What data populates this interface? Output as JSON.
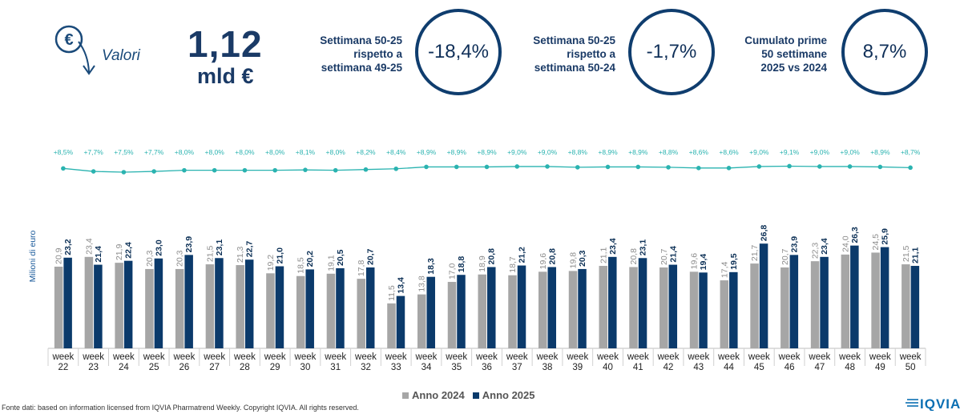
{
  "header": {
    "icon": "euro-down-arrow-icon",
    "label": "Valori",
    "value": "1,12",
    "unit": "mld €"
  },
  "kpis": [
    {
      "label_lines": [
        "Settimana 50-25",
        "rispetto a",
        "settimana 49-25"
      ],
      "value": "-18,4%"
    },
    {
      "label_lines": [
        "Settimana 50-25",
        "rispetto a",
        "settimana 50-24"
      ],
      "value": "-1,7%"
    },
    {
      "label_lines": [
        "Cumulato prime",
        "50 settimane",
        "2025 vs 2024"
      ],
      "value": "8,7%"
    }
  ],
  "colors": {
    "series_2024": "#a6a6a6",
    "series_2025": "#0b3a6b",
    "growth_line": "#2ab3b0",
    "kpi_ring": "#0f3d6e",
    "ylabel": "#1a5a9a"
  },
  "chart_data": {
    "type": "bar",
    "ylabel": "Milioni di euro",
    "ylim": [
      0,
      30
    ],
    "grid": false,
    "legend_position": "bottom",
    "categories": [
      "week\n22",
      "week\n23",
      "week\n24",
      "week\n25",
      "week\n26",
      "week\n27",
      "week\n28",
      "week\n29",
      "week\n30",
      "week\n31",
      "week\n32",
      "week\n33",
      "week\n34",
      "week\n35",
      "week\n36",
      "week\n37",
      "week\n38",
      "week\n39",
      "week\n40",
      "week\n41",
      "week\n42",
      "week\n43",
      "week\n44",
      "week\n45",
      "week\n46",
      "week\n47",
      "week\n48",
      "week\n49",
      "week\n50"
    ],
    "series": [
      {
        "name": "Anno 2024",
        "values": [
          20.9,
          23.4,
          21.9,
          20.3,
          20.3,
          21.5,
          21.3,
          19.2,
          18.5,
          19.1,
          17.8,
          11.5,
          13.8,
          17.0,
          18.9,
          18.7,
          19.6,
          19.8,
          21.1,
          20.8,
          20.7,
          19.6,
          17.4,
          21.7,
          20.7,
          22.3,
          24.0,
          24.5,
          21.5
        ],
        "labels": [
          "20,9",
          "23,4",
          "21,9",
          "20,3",
          "20,3",
          "21,5",
          "21,3",
          "19,2",
          "18,5",
          "19,1",
          "17,8",
          "11,5",
          "13,8",
          "17,0",
          "18,9",
          "18,7",
          "19,6",
          "19,8",
          "21,1",
          "20,8",
          "20,7",
          "19,6",
          "17,4",
          "21,7",
          "20,7",
          "22,3",
          "24,0",
          "24,5",
          "21,5"
        ]
      },
      {
        "name": "Anno 2025",
        "values": [
          23.2,
          21.4,
          22.4,
          23.0,
          23.9,
          23.1,
          22.7,
          21.0,
          20.2,
          20.5,
          20.7,
          13.4,
          18.3,
          18.8,
          20.8,
          21.2,
          20.8,
          20.3,
          23.4,
          23.1,
          21.4,
          19.4,
          19.5,
          26.8,
          23.9,
          23.4,
          26.3,
          25.9,
          21.1
        ],
        "labels": [
          "23,2",
          "21,4",
          "22,4",
          "23,0",
          "23,9",
          "23,1",
          "22,7",
          "21,0",
          "20,2",
          "20,5",
          "20,7",
          "13,4",
          "18,3",
          "18,8",
          "20,8",
          "21,2",
          "20,8",
          "20,3",
          "23,4",
          "23,1",
          "21,4",
          "19,4",
          "19,5",
          "26,8",
          "23,9",
          "23,4",
          "26,3",
          "25,9",
          "21,1"
        ]
      }
    ],
    "growth_line": {
      "values": [
        8.5,
        7.7,
        7.5,
        7.7,
        8.0,
        8.0,
        8.0,
        8.0,
        8.1,
        8.0,
        8.2,
        8.4,
        8.9,
        8.9,
        8.9,
        9.0,
        9.0,
        8.8,
        8.9,
        8.9,
        8.8,
        8.6,
        8.6,
        9.0,
        9.1,
        9.0,
        9.0,
        8.9,
        8.7
      ],
      "labels": [
        "+8,5%",
        "+7,7%",
        "+7,5%",
        "+7,7%",
        "+8,0%",
        "+8,0%",
        "+8,0%",
        "+8,0%",
        "+8,1%",
        "+8,0%",
        "+8,2%",
        "+8,4%",
        "+8,9%",
        "+8,9%",
        "+8,9%",
        "+9,0%",
        "+9,0%",
        "+8,8%",
        "+8,9%",
        "+8,9%",
        "+8,8%",
        "+8,6%",
        "+8,6%",
        "+9,0%",
        "+9,1%",
        "+9,0%",
        "+9,0%",
        "+8,9%",
        "+8,7%"
      ]
    }
  },
  "footer": {
    "source": "Fonte dati: based on information licensed from IQVIA Pharmatrend Weekly. Copyright IQVIA. All rights reserved.",
    "logo_text": "IQVIA"
  }
}
